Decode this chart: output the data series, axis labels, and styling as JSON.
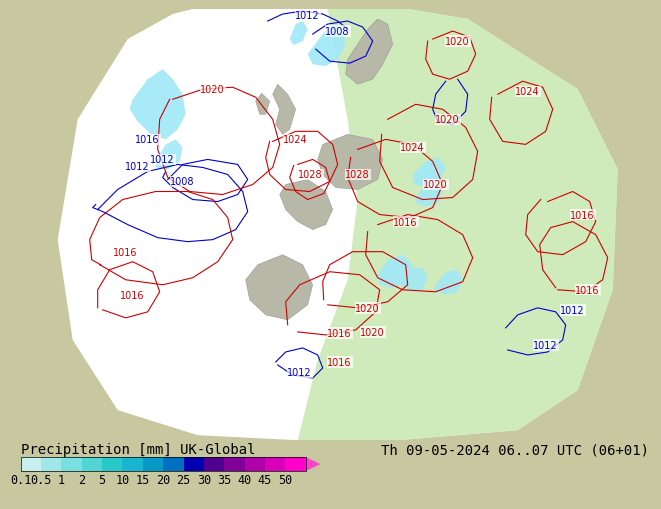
{
  "title_left": "Precipitation [mm] UK-Global",
  "title_right": "Th 09-05-2024 06..07 UTC (06+01)",
  "colorbar_labels": [
    "0.1",
    "0.5",
    "1",
    "2",
    "5",
    "10",
    "15",
    "20",
    "25",
    "30",
    "35",
    "40",
    "45",
    "50"
  ],
  "colorbar_colors": [
    "#c8f0f0",
    "#a0e8e8",
    "#78e0e0",
    "#50d4d4",
    "#28c8c8",
    "#18b4d0",
    "#0898c8",
    "#0070c0",
    "#0000b0",
    "#500090",
    "#800098",
    "#b000a8",
    "#d800b8",
    "#ff00cc",
    "#ff44cc"
  ],
  "bg_color": "#c8c8a0",
  "ocean_color": "#ffffff",
  "land_color_outside": "#c8c8a0",
  "land_color_inside": "#d0d0b8",
  "green_area_color": "#c8e8b0",
  "precip_cyan_color": "#a0e8f0",
  "precip_blue_color": "#78d0e8",
  "isobar_red_color": "#cc0000",
  "isobar_blue_color": "#0000cc",
  "font_color": "#000000",
  "font_size_title": 10,
  "font_size_ticks": 8.5,
  "font_size_isobar": 7
}
